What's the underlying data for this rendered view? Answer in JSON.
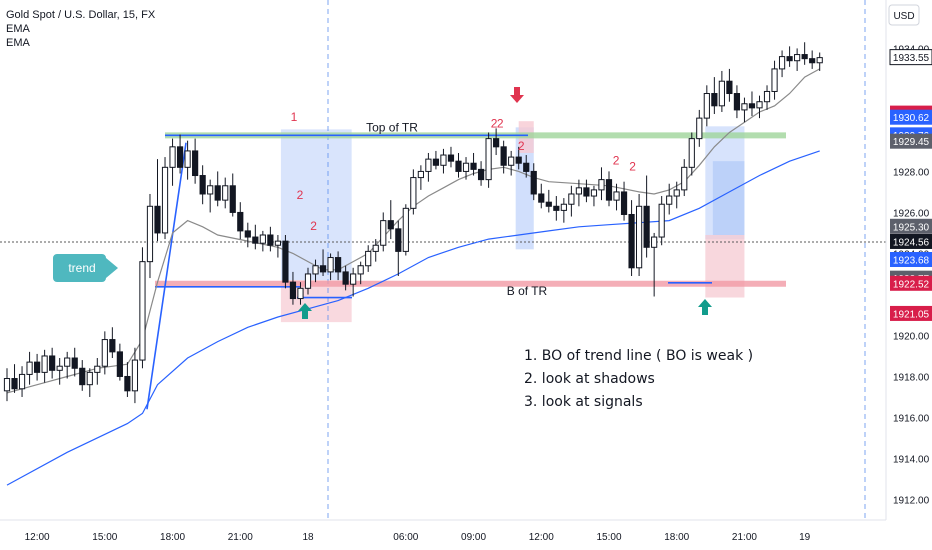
{
  "legend": {
    "symbol_line": "Gold Spot / U.S. Dollar, 15, FX",
    "indicator_1": "EMA",
    "indicator_2": "EMA"
  },
  "currency_button": "USD",
  "colors": {
    "candle_up": "#131722",
    "candle_down": "#131722",
    "ema_fast": "#8a8a8a",
    "ema_slow": "#2962ff",
    "top_tr": "#9fd59a",
    "bottom_tr": "#f19aa5",
    "trendline": "#2962ff",
    "red_label": "#e0344f",
    "teal_arrow": "#129c8c",
    "trend_badge": "#4fb8bf",
    "crosshair": "#5a5a5a",
    "session_line": "#5b8def"
  },
  "annotations": {
    "top_label": "Top of TR",
    "bottom_label": "B of TR",
    "trend_badge": "trend",
    "notes": [
      "1. BO of trend line ( BO is weak )",
      "2. look at shadows",
      "3. look at signals"
    ],
    "red_numbers": [
      {
        "text": "1",
        "t": 19.6,
        "p": 1930.35
      },
      {
        "text": "2",
        "t": 20.0,
        "p": 1926.55
      },
      {
        "text": "2",
        "t": 20.9,
        "p": 1925.05
      },
      {
        "text": "2",
        "t": 32.9,
        "p": 1930.05
      },
      {
        "text": "2",
        "t": 33.3,
        "p": 1930.05
      },
      {
        "text": "2",
        "t": 34.7,
        "p": 1928.95
      },
      {
        "text": "2",
        "t": 41.0,
        "p": 1928.25
      },
      {
        "text": "2",
        "t": 42.1,
        "p": 1927.95
      }
    ]
  },
  "price_labels": [
    {
      "value": "1933.55",
      "bg": "#ffffff",
      "fg": "#131722",
      "border": "#131722"
    },
    {
      "value": "1930.82",
      "bg": "#d81e4a",
      "fg": "#ffffff"
    },
    {
      "value": "1930.62",
      "bg": "#2962ff",
      "fg": "#ffffff"
    },
    {
      "value": "1929.76",
      "bg": "#2962ff",
      "fg": "#ffffff"
    },
    {
      "value": "1929.45",
      "bg": "#5d606b",
      "fg": "#ffffff"
    },
    {
      "value": "1925.30",
      "bg": "#5d606b",
      "fg": "#ffffff"
    },
    {
      "value": "1924.56",
      "bg": "#131722",
      "fg": "#ffffff"
    },
    {
      "value": "1923.68",
      "bg": "#2962ff",
      "fg": "#ffffff"
    },
    {
      "value": "1922.77",
      "bg": "#5d606b",
      "fg": "#ffffff"
    },
    {
      "value": "1922.52",
      "bg": "#d81e4a",
      "fg": "#ffffff"
    },
    {
      "value": "1921.05",
      "bg": "#d81e4a",
      "fg": "#ffffff"
    }
  ],
  "chart_data": {
    "type": "candlestick",
    "ylim": [
      1911,
      1934.8
    ],
    "y_ticks": [
      "1912.00",
      "1914.00",
      "1916.00",
      "1918.00",
      "1920.00",
      "1924.00",
      "1926.00",
      "1928.00",
      "1934.00"
    ],
    "x_ticks": [
      {
        "label": "12:00",
        "t": 2
      },
      {
        "label": "15:00",
        "t": 6.5
      },
      {
        "label": "18:00",
        "t": 11
      },
      {
        "label": "21:00",
        "t": 15.5
      },
      {
        "label": "18",
        "t": 20
      },
      {
        "label": "06:00",
        "t": 26.5
      },
      {
        "label": "09:00",
        "t": 31
      },
      {
        "label": "12:00",
        "t": 35.5
      },
      {
        "label": "15:00",
        "t": 40
      },
      {
        "label": "18:00",
        "t": 44.5
      },
      {
        "label": "21:00",
        "t": 49
      },
      {
        "label": "19",
        "t": 53
      }
    ],
    "session_breaks": [
      20,
      53.4
    ],
    "crosshair_price": 1924.56,
    "levels": {
      "top_of_tr": 1929.76,
      "bottom_of_tr": 1922.52
    },
    "ema_fast_points": [
      [
        0,
        1917.2
      ],
      [
        2,
        1917.6
      ],
      [
        4,
        1918.0
      ],
      [
        6,
        1918.4
      ],
      [
        8,
        1918.6
      ],
      [
        9,
        1919.8
      ],
      [
        10,
        1922.6
      ],
      [
        11,
        1925.0
      ],
      [
        12,
        1925.6
      ],
      [
        13,
        1925.3
      ],
      [
        14,
        1924.9
      ],
      [
        16,
        1924.6
      ],
      [
        18,
        1924.3
      ],
      [
        19,
        1924.0
      ],
      [
        20,
        1923.6
      ],
      [
        21,
        1923.2
      ],
      [
        22,
        1923.2
      ],
      [
        23,
        1923.6
      ],
      [
        24,
        1924.0
      ],
      [
        25,
        1924.8
      ],
      [
        26,
        1925.6
      ],
      [
        27,
        1926.3
      ],
      [
        28,
        1926.8
      ],
      [
        29,
        1927.2
      ],
      [
        30,
        1927.6
      ],
      [
        31,
        1927.9
      ],
      [
        32,
        1928.1
      ],
      [
        33,
        1928.2
      ],
      [
        34,
        1928.0
      ],
      [
        35,
        1927.7
      ],
      [
        36,
        1927.5
      ],
      [
        38,
        1927.4
      ],
      [
        40,
        1927.3
      ],
      [
        42,
        1927.0
      ],
      [
        43,
        1926.9
      ],
      [
        44,
        1927.1
      ],
      [
        45,
        1927.5
      ],
      [
        46,
        1928.3
      ],
      [
        47,
        1929.2
      ],
      [
        48,
        1929.9
      ],
      [
        49,
        1930.4
      ],
      [
        50,
        1930.9
      ],
      [
        51,
        1931.2
      ],
      [
        52,
        1931.8
      ],
      [
        53,
        1932.6
      ],
      [
        54,
        1933.0
      ]
    ],
    "ema_slow_points": [
      [
        0,
        1912.7
      ],
      [
        4,
        1914.3
      ],
      [
        8,
        1915.7
      ],
      [
        9,
        1916.2
      ],
      [
        10,
        1917.6
      ],
      [
        12,
        1918.9
      ],
      [
        14,
        1919.7
      ],
      [
        16,
        1920.4
      ],
      [
        18,
        1920.9
      ],
      [
        20,
        1921.3
      ],
      [
        22,
        1921.7
      ],
      [
        24,
        1922.3
      ],
      [
        26,
        1923.0
      ],
      [
        28,
        1923.8
      ],
      [
        30,
        1924.3
      ],
      [
        32,
        1924.7
      ],
      [
        34,
        1924.9
      ],
      [
        36,
        1925.1
      ],
      [
        38,
        1925.3
      ],
      [
        40,
        1925.4
      ],
      [
        42,
        1925.5
      ],
      [
        44,
        1925.6
      ],
      [
        46,
        1926.2
      ],
      [
        48,
        1927.0
      ],
      [
        50,
        1927.8
      ],
      [
        52,
        1928.5
      ],
      [
        54,
        1929.0
      ]
    ],
    "candles": [
      {
        "t": 0,
        "o": 1917.3,
        "h": 1918.4,
        "l": 1916.8,
        "c": 1917.9
      },
      {
        "t": 0.5,
        "o": 1917.9,
        "h": 1918.6,
        "l": 1917.2,
        "c": 1917.4
      },
      {
        "t": 1,
        "o": 1917.4,
        "h": 1918.5,
        "l": 1917.0,
        "c": 1918.1
      },
      {
        "t": 1.5,
        "o": 1918.1,
        "h": 1919.2,
        "l": 1917.6,
        "c": 1918.7
      },
      {
        "t": 2,
        "o": 1918.7,
        "h": 1919.1,
        "l": 1917.8,
        "c": 1918.2
      },
      {
        "t": 2.5,
        "o": 1918.2,
        "h": 1919.3,
        "l": 1917.7,
        "c": 1919.0
      },
      {
        "t": 3,
        "o": 1919.0,
        "h": 1919.4,
        "l": 1917.9,
        "c": 1918.3
      },
      {
        "t": 3.5,
        "o": 1918.3,
        "h": 1918.9,
        "l": 1917.6,
        "c": 1918.5
      },
      {
        "t": 4,
        "o": 1918.5,
        "h": 1919.2,
        "l": 1917.9,
        "c": 1918.9
      },
      {
        "t": 4.5,
        "o": 1918.9,
        "h": 1919.4,
        "l": 1918.0,
        "c": 1918.4
      },
      {
        "t": 5,
        "o": 1918.4,
        "h": 1918.8,
        "l": 1917.3,
        "c": 1917.6
      },
      {
        "t": 5.5,
        "o": 1917.6,
        "h": 1918.4,
        "l": 1917.0,
        "c": 1918.2
      },
      {
        "t": 6,
        "o": 1918.2,
        "h": 1918.9,
        "l": 1917.6,
        "c": 1918.5
      },
      {
        "t": 6.5,
        "o": 1918.5,
        "h": 1920.2,
        "l": 1918.1,
        "c": 1919.8
      },
      {
        "t": 7,
        "o": 1919.8,
        "h": 1920.4,
        "l": 1918.9,
        "c": 1919.2
      },
      {
        "t": 7.5,
        "o": 1919.2,
        "h": 1919.6,
        "l": 1917.8,
        "c": 1918.0
      },
      {
        "t": 8,
        "o": 1918.0,
        "h": 1918.7,
        "l": 1917.0,
        "c": 1917.3
      },
      {
        "t": 8.5,
        "o": 1917.3,
        "h": 1919.4,
        "l": 1916.7,
        "c": 1918.8
      },
      {
        "t": 9,
        "o": 1918.8,
        "h": 1924.3,
        "l": 1918.4,
        "c": 1923.6
      },
      {
        "t": 9.5,
        "o": 1923.6,
        "h": 1926.9,
        "l": 1922.8,
        "c": 1926.3
      },
      {
        "t": 10,
        "o": 1926.3,
        "h": 1928.6,
        "l": 1924.6,
        "c": 1925.0
      },
      {
        "t": 10.5,
        "o": 1925.0,
        "h": 1928.7,
        "l": 1924.7,
        "c": 1928.2
      },
      {
        "t": 11,
        "o": 1928.2,
        "h": 1929.6,
        "l": 1927.3,
        "c": 1929.2
      },
      {
        "t": 11.5,
        "o": 1929.2,
        "h": 1929.8,
        "l": 1927.9,
        "c": 1928.2
      },
      {
        "t": 12,
        "o": 1928.2,
        "h": 1929.5,
        "l": 1927.6,
        "c": 1929.0
      },
      {
        "t": 12.5,
        "o": 1929.0,
        "h": 1929.6,
        "l": 1927.4,
        "c": 1927.8
      },
      {
        "t": 13,
        "o": 1927.8,
        "h": 1928.3,
        "l": 1926.4,
        "c": 1926.9
      },
      {
        "t": 13.5,
        "o": 1926.9,
        "h": 1927.6,
        "l": 1926.0,
        "c": 1927.3
      },
      {
        "t": 14,
        "o": 1927.3,
        "h": 1928.0,
        "l": 1926.3,
        "c": 1926.6
      },
      {
        "t": 14.5,
        "o": 1926.6,
        "h": 1927.7,
        "l": 1926.2,
        "c": 1927.3
      },
      {
        "t": 15,
        "o": 1927.3,
        "h": 1927.9,
        "l": 1925.8,
        "c": 1926.0
      },
      {
        "t": 15.5,
        "o": 1926.0,
        "h": 1926.5,
        "l": 1924.7,
        "c": 1925.1
      },
      {
        "t": 16,
        "o": 1925.1,
        "h": 1925.5,
        "l": 1924.3,
        "c": 1924.8
      },
      {
        "t": 16.5,
        "o": 1924.8,
        "h": 1925.4,
        "l": 1924.2,
        "c": 1924.5
      },
      {
        "t": 17,
        "o": 1924.5,
        "h": 1925.1,
        "l": 1924.1,
        "c": 1924.9
      },
      {
        "t": 17.5,
        "o": 1924.9,
        "h": 1925.3,
        "l": 1924.1,
        "c": 1924.4
      },
      {
        "t": 18,
        "o": 1924.4,
        "h": 1924.9,
        "l": 1923.8,
        "c": 1924.6
      },
      {
        "t": 18.5,
        "o": 1924.6,
        "h": 1924.9,
        "l": 1922.3,
        "c": 1922.6
      },
      {
        "t": 19,
        "o": 1922.6,
        "h": 1923.1,
        "l": 1921.5,
        "c": 1921.8
      },
      {
        "t": 19.5,
        "o": 1921.8,
        "h": 1922.6,
        "l": 1921.5,
        "c": 1922.3
      },
      {
        "t": 20,
        "o": 1922.3,
        "h": 1923.3,
        "l": 1922.0,
        "c": 1923.0
      },
      {
        "t": 20.5,
        "o": 1923.0,
        "h": 1923.7,
        "l": 1922.6,
        "c": 1923.4
      },
      {
        "t": 21,
        "o": 1923.4,
        "h": 1924.2,
        "l": 1922.9,
        "c": 1923.1
      },
      {
        "t": 21.5,
        "o": 1923.1,
        "h": 1924.0,
        "l": 1922.7,
        "c": 1923.8
      },
      {
        "t": 22,
        "o": 1923.8,
        "h": 1924.1,
        "l": 1922.7,
        "c": 1923.1
      },
      {
        "t": 22.5,
        "o": 1923.1,
        "h": 1923.4,
        "l": 1922.2,
        "c": 1922.5
      },
      {
        "t": 23,
        "o": 1922.5,
        "h": 1923.3,
        "l": 1921.9,
        "c": 1923.0
      },
      {
        "t": 23.5,
        "o": 1923.0,
        "h": 1923.6,
        "l": 1922.5,
        "c": 1923.4
      },
      {
        "t": 24,
        "o": 1923.4,
        "h": 1924.4,
        "l": 1923.1,
        "c": 1924.1
      },
      {
        "t": 24.5,
        "o": 1924.1,
        "h": 1924.7,
        "l": 1923.6,
        "c": 1924.4
      },
      {
        "t": 25,
        "o": 1924.4,
        "h": 1926.0,
        "l": 1924.1,
        "c": 1925.6
      },
      {
        "t": 25.5,
        "o": 1925.6,
        "h": 1926.6,
        "l": 1924.7,
        "c": 1925.2
      },
      {
        "t": 26,
        "o": 1925.2,
        "h": 1925.6,
        "l": 1922.9,
        "c": 1924.1
      },
      {
        "t": 26.5,
        "o": 1924.1,
        "h": 1926.4,
        "l": 1923.9,
        "c": 1926.2
      },
      {
        "t": 27,
        "o": 1926.2,
        "h": 1928.1,
        "l": 1925.9,
        "c": 1927.7
      },
      {
        "t": 27.5,
        "o": 1927.7,
        "h": 1928.3,
        "l": 1927.1,
        "c": 1928.0
      },
      {
        "t": 28,
        "o": 1928.0,
        "h": 1928.9,
        "l": 1927.5,
        "c": 1928.6
      },
      {
        "t": 28.5,
        "o": 1928.6,
        "h": 1929.0,
        "l": 1928.1,
        "c": 1928.3
      },
      {
        "t": 29,
        "o": 1928.3,
        "h": 1929.1,
        "l": 1927.9,
        "c": 1928.8
      },
      {
        "t": 29.5,
        "o": 1928.8,
        "h": 1929.2,
        "l": 1928.2,
        "c": 1928.5
      },
      {
        "t": 30,
        "o": 1928.5,
        "h": 1928.9,
        "l": 1927.7,
        "c": 1928.0
      },
      {
        "t": 30.5,
        "o": 1928.0,
        "h": 1928.7,
        "l": 1927.6,
        "c": 1928.4
      },
      {
        "t": 31,
        "o": 1928.4,
        "h": 1928.9,
        "l": 1927.8,
        "c": 1928.1
      },
      {
        "t": 31.5,
        "o": 1928.1,
        "h": 1928.5,
        "l": 1927.3,
        "c": 1927.6
      },
      {
        "t": 32,
        "o": 1927.6,
        "h": 1929.9,
        "l": 1927.2,
        "c": 1929.6
      },
      {
        "t": 32.5,
        "o": 1929.6,
        "h": 1930.1,
        "l": 1928.8,
        "c": 1929.2
      },
      {
        "t": 33,
        "o": 1929.2,
        "h": 1929.5,
        "l": 1927.9,
        "c": 1928.3
      },
      {
        "t": 33.5,
        "o": 1928.3,
        "h": 1929.0,
        "l": 1927.8,
        "c": 1928.7
      },
      {
        "t": 34,
        "o": 1928.7,
        "h": 1929.2,
        "l": 1928.1,
        "c": 1928.4
      },
      {
        "t": 34.5,
        "o": 1928.4,
        "h": 1928.8,
        "l": 1927.7,
        "c": 1928.0
      },
      {
        "t": 35,
        "o": 1928.0,
        "h": 1928.4,
        "l": 1926.6,
        "c": 1926.9
      },
      {
        "t": 35.5,
        "o": 1926.9,
        "h": 1927.4,
        "l": 1926.2,
        "c": 1926.5
      },
      {
        "t": 36,
        "o": 1926.5,
        "h": 1927.1,
        "l": 1926.0,
        "c": 1926.3
      },
      {
        "t": 36.5,
        "o": 1926.3,
        "h": 1926.8,
        "l": 1925.6,
        "c": 1926.1
      },
      {
        "t": 37,
        "o": 1926.1,
        "h": 1926.7,
        "l": 1925.5,
        "c": 1926.4
      },
      {
        "t": 37.5,
        "o": 1926.4,
        "h": 1927.3,
        "l": 1925.8,
        "c": 1926.9
      },
      {
        "t": 38,
        "o": 1926.9,
        "h": 1927.6,
        "l": 1926.3,
        "c": 1927.2
      },
      {
        "t": 38.5,
        "o": 1927.2,
        "h": 1927.6,
        "l": 1926.5,
        "c": 1926.8
      },
      {
        "t": 39,
        "o": 1926.8,
        "h": 1927.3,
        "l": 1926.3,
        "c": 1927.1
      },
      {
        "t": 39.5,
        "o": 1927.1,
        "h": 1928.2,
        "l": 1926.6,
        "c": 1927.6
      },
      {
        "t": 40,
        "o": 1927.6,
        "h": 1928.0,
        "l": 1926.3,
        "c": 1926.6
      },
      {
        "t": 40.5,
        "o": 1926.6,
        "h": 1927.4,
        "l": 1926.1,
        "c": 1927.0
      },
      {
        "t": 41,
        "o": 1927.0,
        "h": 1927.5,
        "l": 1925.6,
        "c": 1925.9
      },
      {
        "t": 41.5,
        "o": 1925.9,
        "h": 1926.6,
        "l": 1922.9,
        "c": 1923.3
      },
      {
        "t": 42,
        "o": 1923.3,
        "h": 1926.9,
        "l": 1922.9,
        "c": 1926.3
      },
      {
        "t": 42.5,
        "o": 1926.3,
        "h": 1927.8,
        "l": 1923.8,
        "c": 1924.3
      },
      {
        "t": 43,
        "o": 1924.3,
        "h": 1925.0,
        "l": 1921.9,
        "c": 1924.8
      },
      {
        "t": 43.5,
        "o": 1924.8,
        "h": 1926.8,
        "l": 1924.4,
        "c": 1926.4
      },
      {
        "t": 44,
        "o": 1926.4,
        "h": 1927.4,
        "l": 1925.9,
        "c": 1926.8
      },
      {
        "t": 44.5,
        "o": 1926.8,
        "h": 1927.5,
        "l": 1926.2,
        "c": 1927.1
      },
      {
        "t": 45,
        "o": 1927.1,
        "h": 1928.6,
        "l": 1926.8,
        "c": 1928.2
      },
      {
        "t": 45.5,
        "o": 1928.2,
        "h": 1929.9,
        "l": 1927.8,
        "c": 1929.6
      },
      {
        "t": 46,
        "o": 1929.6,
        "h": 1931.0,
        "l": 1929.2,
        "c": 1930.6
      },
      {
        "t": 46.5,
        "o": 1930.6,
        "h": 1932.2,
        "l": 1930.2,
        "c": 1931.8
      },
      {
        "t": 47,
        "o": 1931.8,
        "h": 1932.6,
        "l": 1930.8,
        "c": 1931.2
      },
      {
        "t": 47.5,
        "o": 1931.2,
        "h": 1932.9,
        "l": 1930.9,
        "c": 1932.4
      },
      {
        "t": 48,
        "o": 1932.4,
        "h": 1933.0,
        "l": 1931.4,
        "c": 1931.8
      },
      {
        "t": 48.5,
        "o": 1931.8,
        "h": 1932.2,
        "l": 1930.6,
        "c": 1931.0
      },
      {
        "t": 49,
        "o": 1931.0,
        "h": 1931.6,
        "l": 1930.4,
        "c": 1931.3
      },
      {
        "t": 49.5,
        "o": 1931.3,
        "h": 1931.9,
        "l": 1930.7,
        "c": 1931.1
      },
      {
        "t": 50,
        "o": 1931.1,
        "h": 1931.7,
        "l": 1930.6,
        "c": 1931.4
      },
      {
        "t": 50.5,
        "o": 1931.4,
        "h": 1932.2,
        "l": 1931.0,
        "c": 1931.9
      },
      {
        "t": 51,
        "o": 1931.9,
        "h": 1933.4,
        "l": 1931.5,
        "c": 1933.0
      },
      {
        "t": 51.5,
        "o": 1933.0,
        "h": 1933.9,
        "l": 1932.6,
        "c": 1933.6
      },
      {
        "t": 52,
        "o": 1933.6,
        "h": 1934.1,
        "l": 1933.1,
        "c": 1933.4
      },
      {
        "t": 52.5,
        "o": 1933.4,
        "h": 1934.0,
        "l": 1932.9,
        "c": 1933.7
      },
      {
        "t": 53,
        "o": 1933.7,
        "h": 1934.3,
        "l": 1933.2,
        "c": 1933.5
      },
      {
        "t": 53.5,
        "o": 1933.5,
        "h": 1933.9,
        "l": 1933.0,
        "c": 1933.3
      },
      {
        "t": 54,
        "o": 1933.3,
        "h": 1933.8,
        "l": 1932.9,
        "c": 1933.55
      }
    ]
  }
}
